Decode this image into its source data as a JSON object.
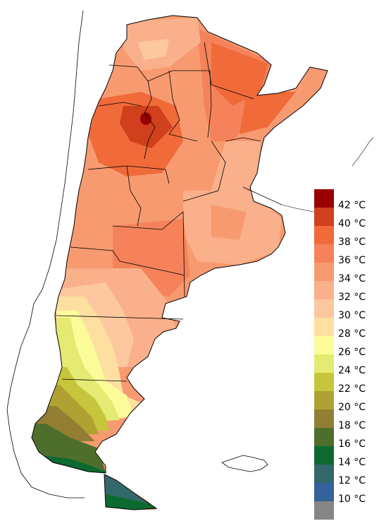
{
  "legend": {
    "items": [
      {
        "label": "42 °C",
        "color": "#990000"
      },
      {
        "label": "40 °C",
        "color": "#d0401c"
      },
      {
        "label": "38 °C",
        "color": "#f06a3a"
      },
      {
        "label": "36 °C",
        "color": "#f5825a"
      },
      {
        "label": "34 °C",
        "color": "#f89a70"
      },
      {
        "label": "32 °C",
        "color": "#fab08a"
      },
      {
        "label": "30 °C",
        "color": "#fdc8a0"
      },
      {
        "label": "28 °C",
        "color": "#fde0a0"
      },
      {
        "label": "26 °C",
        "color": "#fbfc98"
      },
      {
        "label": "24 °C",
        "color": "#e4ea72"
      },
      {
        "label": "22 °C",
        "color": "#c6c63c"
      },
      {
        "label": "20 °C",
        "color": "#b0a232"
      },
      {
        "label": "18 °C",
        "color": "#947e34"
      },
      {
        "label": "16 °C",
        "color": "#4e6f2c"
      },
      {
        "label": "14 °C",
        "color": "#0c6a30"
      },
      {
        "label": "12 °C",
        "color": "#32686a"
      },
      {
        "label": "10 °C",
        "color": "#34629a"
      },
      {
        "label": "",
        "color": "#868686"
      }
    ]
  },
  "map_colors": {
    "outline": "#000000",
    "sea_coast": "#000000"
  }
}
